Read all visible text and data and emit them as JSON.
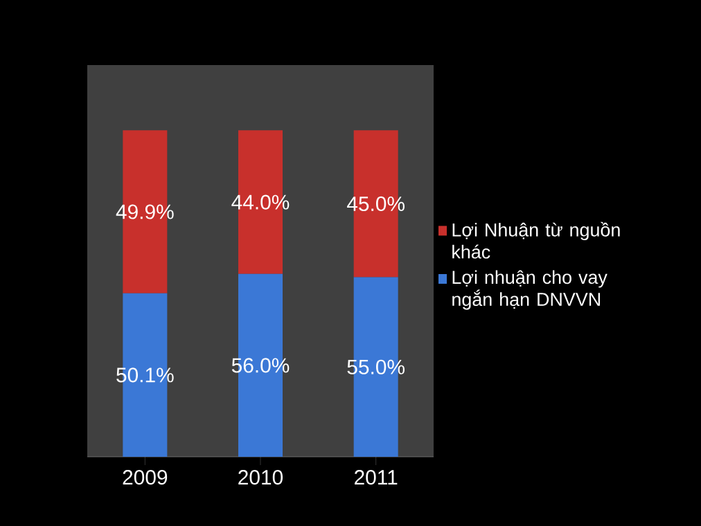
{
  "chart_data": {
    "type": "bar",
    "stacked": true,
    "categories": [
      "2009",
      "2010",
      "2011"
    ],
    "series": [
      {
        "name": "Lợi nhuận cho vay ngắn hạn DNVVN",
        "color": "#3b78d6",
        "values": [
          50.1,
          56.0,
          55.0
        ],
        "value_labels": [
          "50.1%",
          "56.0%",
          "55.0%"
        ]
      },
      {
        "name": "Lợi Nhuận từ nguồn khác",
        "color": "#c8302c",
        "values": [
          49.9,
          44.0,
          45.0
        ],
        "value_labels": [
          "49.9%",
          "44.0%",
          "45.0%"
        ]
      }
    ],
    "ylim": [
      0,
      120
    ],
    "tick_labels": "x",
    "legend": "right"
  }
}
